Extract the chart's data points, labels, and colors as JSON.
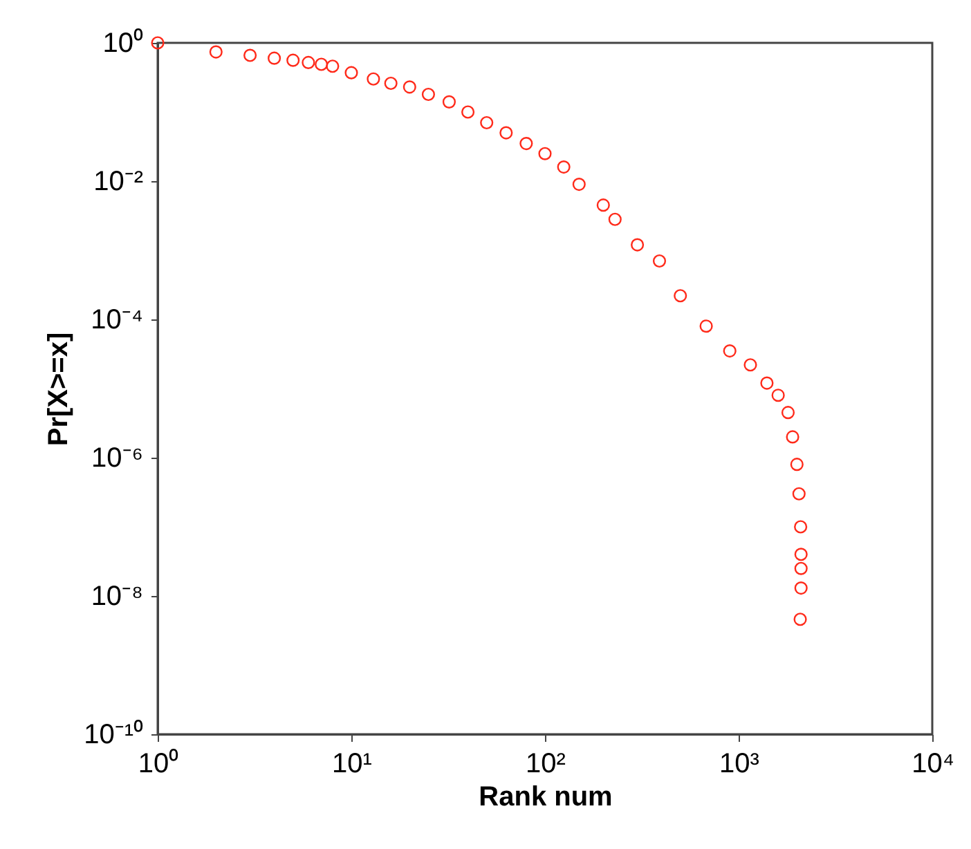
{
  "chart_data": {
    "type": "scatter",
    "xlabel": "Rank num",
    "ylabel": "Pr[X>=x]",
    "log": "xy",
    "grid": false,
    "marker": "circle",
    "xlim": [
      1,
      10000
    ],
    "ylim": [
      1e-10,
      1
    ],
    "xticks": [
      {
        "value": 1,
        "label": "10⁰"
      },
      {
        "value": 10,
        "label": "10¹"
      },
      {
        "value": 100,
        "label": "10²"
      },
      {
        "value": 1000,
        "label": "10³"
      },
      {
        "value": 10000,
        "label": "10⁴"
      }
    ],
    "yticks": [
      {
        "value": 1e-10,
        "label": "10⁻¹⁰"
      },
      {
        "value": 1e-08,
        "label": "10⁻⁸"
      },
      {
        "value": 1e-06,
        "label": "10⁻⁶"
      },
      {
        "value": 0.0001,
        "label": "10⁻⁴"
      },
      {
        "value": 0.01,
        "label": "10⁻²"
      },
      {
        "value": 1,
        "label": "10⁰"
      }
    ],
    "series": [
      {
        "color": "#ff2a1a",
        "x": [
          1,
          2,
          3,
          4,
          5,
          6,
          7,
          8,
          10,
          13,
          16,
          20,
          25,
          32,
          40,
          50,
          63,
          80,
          100,
          125,
          150,
          200,
          230,
          300,
          390,
          500,
          680,
          900,
          1150,
          1400,
          1600,
          1800,
          1900,
          2000,
          2050,
          2090,
          2100,
          2100,
          2100,
          2080
        ],
        "values": [
          1,
          0.74,
          0.66,
          0.6,
          0.56,
          0.52,
          0.49,
          0.46,
          0.37,
          0.3,
          0.26,
          0.23,
          0.18,
          0.14,
          0.1,
          0.07,
          0.05,
          0.035,
          0.025,
          0.016,
          0.009,
          0.0045,
          0.0028,
          0.0012,
          0.0007,
          0.00022,
          8e-05,
          3.5e-05,
          2.2e-05,
          1.2e-05,
          8e-06,
          4.5e-06,
          2e-06,
          8e-07,
          3e-07,
          1e-07,
          4e-08,
          2.5e-08,
          1.3e-08,
          4.6e-09
        ]
      }
    ]
  }
}
